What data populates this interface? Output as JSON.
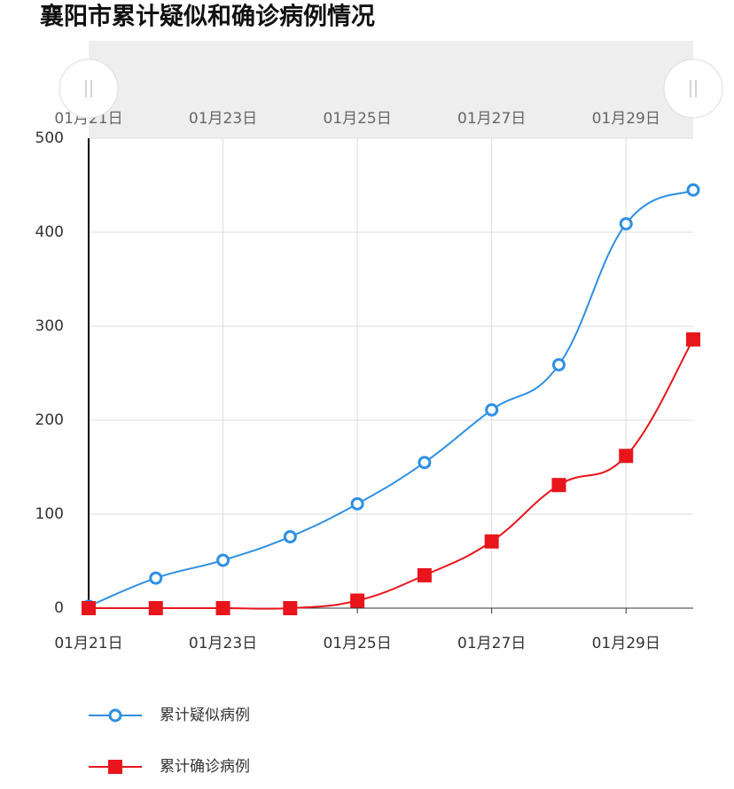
{
  "chart_data": {
    "type": "line",
    "title": "襄阳市累计疑似和确诊病例情况",
    "categories": [
      "01月21日",
      null,
      "01月23日",
      null,
      "01月25日",
      null,
      "01月27日",
      null,
      "01月29日",
      null
    ],
    "series": [
      {
        "name": "累计疑似病例",
        "color": "#2f8fe3",
        "marker": "circle",
        "values": [
          2,
          32,
          51,
          76,
          111,
          155,
          211,
          259,
          409,
          445
        ]
      },
      {
        "name": "累计确诊病例",
        "color": "#e8151d",
        "marker": "square",
        "values": [
          0,
          0,
          0,
          0,
          8,
          35,
          71,
          131,
          162,
          286
        ]
      }
    ],
    "ylim": [
      0,
      500
    ],
    "yticks": [
      0,
      100,
      200,
      300,
      400,
      500
    ],
    "grid": true
  }
}
